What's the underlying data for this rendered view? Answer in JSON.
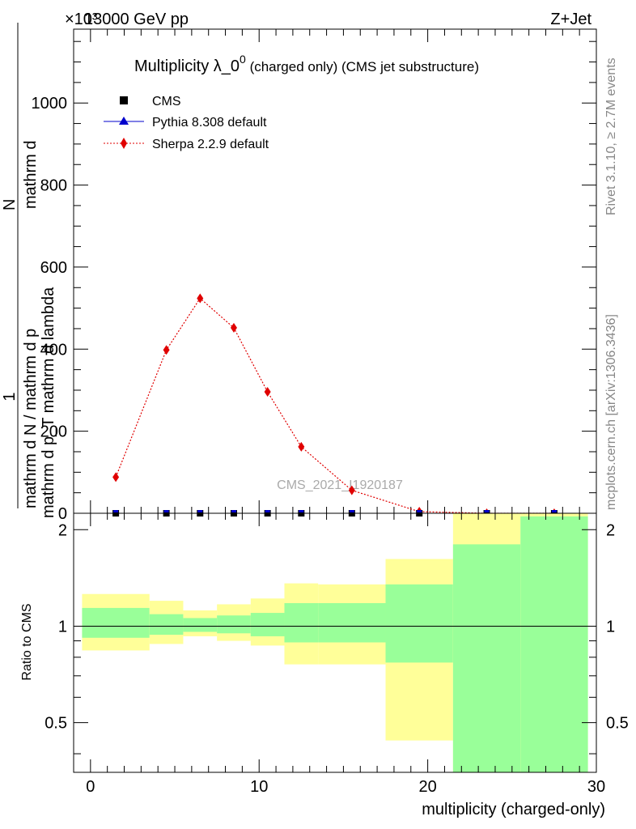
{
  "header": {
    "left": "13000 GeV pp",
    "right": "Z+Jet",
    "exponent": "×10³"
  },
  "side_labels": {
    "rivet": "Rivet 3.1.10, ≥ 2.7M events",
    "mcplots": "mcplots.cern.ch [arXiv:1306.3436]"
  },
  "chart_data": [
    {
      "type": "line",
      "title_main": "Multiplicity λ_0",
      "title_sup": "0",
      "title_rest": " (charged only) (CMS jet substructure)",
      "watermark": "CMS_2021_I1920187",
      "ylabel_top": "1",
      "ylabel_mid": "mathrm d N / mathrm d p",
      "ylabel_bottom_a": "mathrm d",
      "ylabel_bottom_b": "N",
      "ylabel_bottom_c": "mathrm d p_T mathrm d lambda",
      "xlim": [
        -1,
        30
      ],
      "ylim": [
        0,
        1180
      ],
      "y_tick_labels": [
        "0",
        "200",
        "400",
        "600",
        "800",
        "1000"
      ],
      "y_tick_values": [
        0,
        200,
        400,
        600,
        800,
        1000
      ],
      "legend": [
        {
          "name": "CMS",
          "marker": "square",
          "color": "#000000"
        },
        {
          "name": "Pythia 8.308 default",
          "marker": "triangle",
          "color": "#0000cc"
        },
        {
          "name": "Sherpa 2.2.9 default",
          "marker": "diamond",
          "color": "#e00000"
        }
      ],
      "series": [
        {
          "name": "Sherpa 2.2.9 default",
          "x": [
            1.5,
            4.5,
            6.5,
            8.5,
            10.5,
            12.5,
            15.5,
            19.5,
            23.5,
            27.5
          ],
          "y": [
            88,
            398,
            524,
            452,
            296,
            162,
            56,
            4,
            0,
            0
          ]
        },
        {
          "name": "CMS",
          "x": [
            1.5,
            4.5,
            6.5,
            8.5,
            10.5,
            12.5,
            15.5,
            19.5,
            23.5,
            27.5
          ],
          "y": [
            0,
            0,
            0,
            0,
            0,
            0,
            0,
            0,
            0,
            0
          ]
        }
      ]
    },
    {
      "type": "area",
      "ylabel": "Ratio to CMS",
      "xlabel": "multiplicity (charged-only)",
      "xlim": [
        -1,
        30
      ],
      "ylim": [
        0.35,
        2.25
      ],
      "x_tick_labels": [
        "0",
        "10",
        "20",
        "30"
      ],
      "x_tick_values": [
        0,
        10,
        20,
        30
      ],
      "y_tick_labels": [
        "0.5",
        "1",
        "2"
      ],
      "y_tick_values": [
        0.5,
        1,
        2
      ],
      "bins": [
        {
          "x0": -0.5,
          "x1": 3.5,
          "stat_lo": 0.92,
          "stat_hi": 1.14,
          "tot_lo": 0.84,
          "tot_hi": 1.26
        },
        {
          "x0": 3.5,
          "x1": 5.5,
          "stat_lo": 0.94,
          "stat_hi": 1.09,
          "tot_lo": 0.88,
          "tot_hi": 1.2
        },
        {
          "x0": 5.5,
          "x1": 7.5,
          "stat_lo": 0.96,
          "stat_hi": 1.06,
          "tot_lo": 0.93,
          "tot_hi": 1.12
        },
        {
          "x0": 7.5,
          "x1": 9.5,
          "stat_lo": 0.95,
          "stat_hi": 1.08,
          "tot_lo": 0.9,
          "tot_hi": 1.17
        },
        {
          "x0": 9.5,
          "x1": 11.5,
          "stat_lo": 0.93,
          "stat_hi": 1.1,
          "tot_lo": 0.87,
          "tot_hi": 1.22
        },
        {
          "x0": 11.5,
          "x1": 13.5,
          "stat_lo": 0.89,
          "stat_hi": 1.18,
          "tot_lo": 0.76,
          "tot_hi": 1.36
        },
        {
          "x0": 13.5,
          "x1": 17.5,
          "stat_lo": 0.89,
          "stat_hi": 1.18,
          "tot_lo": 0.76,
          "tot_hi": 1.35
        },
        {
          "x0": 17.5,
          "x1": 21.5,
          "stat_lo": 0.77,
          "stat_hi": 1.35,
          "tot_lo": 0.44,
          "tot_hi": 1.62
        },
        {
          "x0": 21.5,
          "x1": 25.5,
          "stat_lo": 0.35,
          "stat_hi": 1.8,
          "tot_lo": 0.35,
          "tot_hi": 2.25
        },
        {
          "x0": 25.5,
          "x1": 29.5,
          "stat_lo": 0.35,
          "stat_hi": 2.2,
          "tot_lo": 0.35,
          "tot_hi": 2.25
        }
      ]
    }
  ]
}
